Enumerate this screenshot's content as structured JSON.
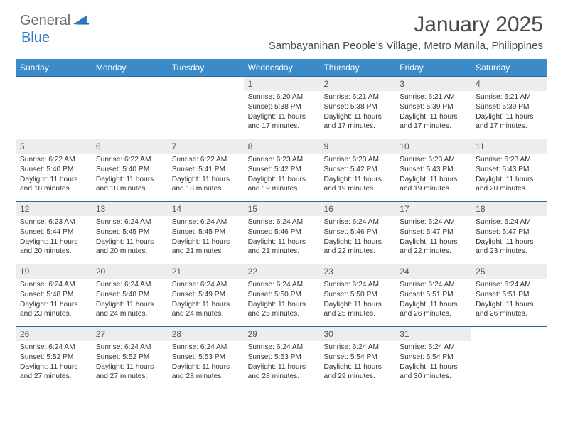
{
  "brand": {
    "part1": "General",
    "part2": "Blue"
  },
  "title": "January 2025",
  "subtitle": "Sambayanihan People's Village, Metro Manila, Philippines",
  "colors": {
    "header_bg": "#3b8bc8",
    "week_border": "#2b6aa0",
    "daynum_bg": "#ededed",
    "text": "#333333",
    "logo_gray": "#6e6e6e",
    "logo_blue": "#2b7bbf"
  },
  "weekdays": [
    "Sunday",
    "Monday",
    "Tuesday",
    "Wednesday",
    "Thursday",
    "Friday",
    "Saturday"
  ],
  "weeks": [
    [
      null,
      null,
      null,
      {
        "n": "1",
        "sr": "6:20 AM",
        "ss": "5:38 PM",
        "dl": "11 hours and 17 minutes."
      },
      {
        "n": "2",
        "sr": "6:21 AM",
        "ss": "5:38 PM",
        "dl": "11 hours and 17 minutes."
      },
      {
        "n": "3",
        "sr": "6:21 AM",
        "ss": "5:39 PM",
        "dl": "11 hours and 17 minutes."
      },
      {
        "n": "4",
        "sr": "6:21 AM",
        "ss": "5:39 PM",
        "dl": "11 hours and 17 minutes."
      }
    ],
    [
      {
        "n": "5",
        "sr": "6:22 AM",
        "ss": "5:40 PM",
        "dl": "11 hours and 18 minutes."
      },
      {
        "n": "6",
        "sr": "6:22 AM",
        "ss": "5:40 PM",
        "dl": "11 hours and 18 minutes."
      },
      {
        "n": "7",
        "sr": "6:22 AM",
        "ss": "5:41 PM",
        "dl": "11 hours and 18 minutes."
      },
      {
        "n": "8",
        "sr": "6:23 AM",
        "ss": "5:42 PM",
        "dl": "11 hours and 19 minutes."
      },
      {
        "n": "9",
        "sr": "6:23 AM",
        "ss": "5:42 PM",
        "dl": "11 hours and 19 minutes."
      },
      {
        "n": "10",
        "sr": "6:23 AM",
        "ss": "5:43 PM",
        "dl": "11 hours and 19 minutes."
      },
      {
        "n": "11",
        "sr": "6:23 AM",
        "ss": "5:43 PM",
        "dl": "11 hours and 20 minutes."
      }
    ],
    [
      {
        "n": "12",
        "sr": "6:23 AM",
        "ss": "5:44 PM",
        "dl": "11 hours and 20 minutes."
      },
      {
        "n": "13",
        "sr": "6:24 AM",
        "ss": "5:45 PM",
        "dl": "11 hours and 20 minutes."
      },
      {
        "n": "14",
        "sr": "6:24 AM",
        "ss": "5:45 PM",
        "dl": "11 hours and 21 minutes."
      },
      {
        "n": "15",
        "sr": "6:24 AM",
        "ss": "5:46 PM",
        "dl": "11 hours and 21 minutes."
      },
      {
        "n": "16",
        "sr": "6:24 AM",
        "ss": "5:46 PM",
        "dl": "11 hours and 22 minutes."
      },
      {
        "n": "17",
        "sr": "6:24 AM",
        "ss": "5:47 PM",
        "dl": "11 hours and 22 minutes."
      },
      {
        "n": "18",
        "sr": "6:24 AM",
        "ss": "5:47 PM",
        "dl": "11 hours and 23 minutes."
      }
    ],
    [
      {
        "n": "19",
        "sr": "6:24 AM",
        "ss": "5:48 PM",
        "dl": "11 hours and 23 minutes."
      },
      {
        "n": "20",
        "sr": "6:24 AM",
        "ss": "5:48 PM",
        "dl": "11 hours and 24 minutes."
      },
      {
        "n": "21",
        "sr": "6:24 AM",
        "ss": "5:49 PM",
        "dl": "11 hours and 24 minutes."
      },
      {
        "n": "22",
        "sr": "6:24 AM",
        "ss": "5:50 PM",
        "dl": "11 hours and 25 minutes."
      },
      {
        "n": "23",
        "sr": "6:24 AM",
        "ss": "5:50 PM",
        "dl": "11 hours and 25 minutes."
      },
      {
        "n": "24",
        "sr": "6:24 AM",
        "ss": "5:51 PM",
        "dl": "11 hours and 26 minutes."
      },
      {
        "n": "25",
        "sr": "6:24 AM",
        "ss": "5:51 PM",
        "dl": "11 hours and 26 minutes."
      }
    ],
    [
      {
        "n": "26",
        "sr": "6:24 AM",
        "ss": "5:52 PM",
        "dl": "11 hours and 27 minutes."
      },
      {
        "n": "27",
        "sr": "6:24 AM",
        "ss": "5:52 PM",
        "dl": "11 hours and 27 minutes."
      },
      {
        "n": "28",
        "sr": "6:24 AM",
        "ss": "5:53 PM",
        "dl": "11 hours and 28 minutes."
      },
      {
        "n": "29",
        "sr": "6:24 AM",
        "ss": "5:53 PM",
        "dl": "11 hours and 28 minutes."
      },
      {
        "n": "30",
        "sr": "6:24 AM",
        "ss": "5:54 PM",
        "dl": "11 hours and 29 minutes."
      },
      {
        "n": "31",
        "sr": "6:24 AM",
        "ss": "5:54 PM",
        "dl": "11 hours and 30 minutes."
      },
      null
    ]
  ],
  "labels": {
    "sunrise": "Sunrise: ",
    "sunset": "Sunset: ",
    "daylight": "Daylight: "
  }
}
